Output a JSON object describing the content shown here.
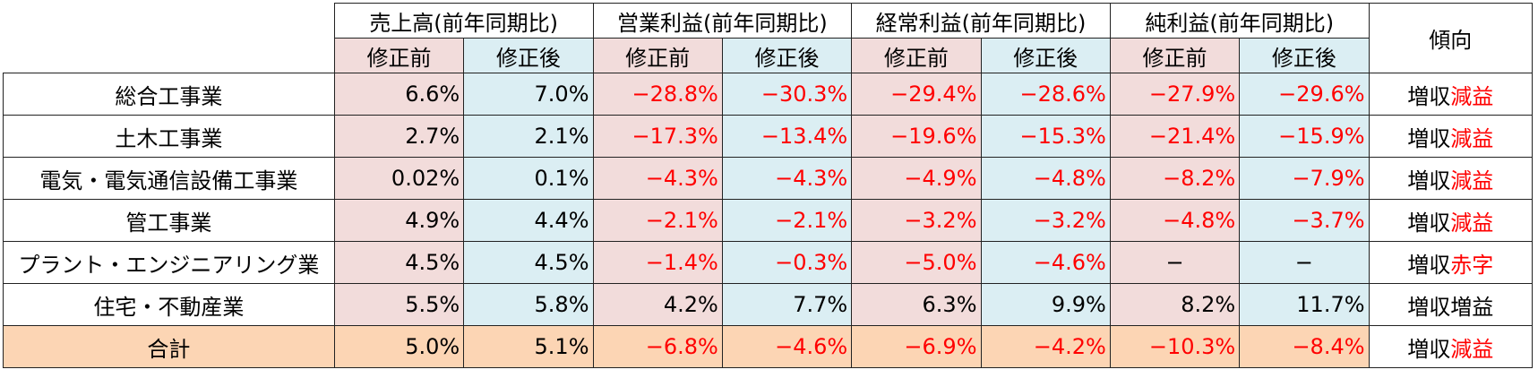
{
  "headers": {
    "groups": [
      "売上高(前年同期比)",
      "営業利益(前年同期比)",
      "経常利益(前年同期比)",
      "純利益(前年同期比)"
    ],
    "trend": "傾向",
    "before": "修正前",
    "after": "修正後"
  },
  "rows": [
    {
      "category": "総合工事業",
      "values": [
        "6.6%",
        "7.0%",
        "−28.8%",
        "−30.3%",
        "−29.4%",
        "−28.6%",
        "−27.9%",
        "−29.6%"
      ],
      "trend_prefix": "増収",
      "trend_suffix": "減益"
    },
    {
      "category": "土木工事業",
      "values": [
        "2.7%",
        "2.1%",
        "−17.3%",
        "−13.4%",
        "−19.6%",
        "−15.3%",
        "−21.4%",
        "−15.9%"
      ],
      "trend_prefix": "増収",
      "trend_suffix": "減益"
    },
    {
      "category": "電気・電気通信設備工事業",
      "values": [
        "0.02%",
        "0.1%",
        "−4.3%",
        "−4.3%",
        "−4.9%",
        "−4.8%",
        "−8.2%",
        "−7.9%"
      ],
      "trend_prefix": "増収",
      "trend_suffix": "減益"
    },
    {
      "category": "管工事業",
      "values": [
        "4.9%",
        "4.4%",
        "−2.1%",
        "−2.1%",
        "−3.2%",
        "−3.2%",
        "−4.8%",
        "−3.7%"
      ],
      "trend_prefix": "増収",
      "trend_suffix": "減益"
    },
    {
      "category": "プラント・エンジニアリング業",
      "values": [
        "4.5%",
        "4.5%",
        "−1.4%",
        "−0.3%",
        "−5.0%",
        "−4.6%",
        "−",
        "−"
      ],
      "trend_prefix": "増収",
      "trend_suffix": "赤字"
    },
    {
      "category": "住宅・不動産業",
      "values": [
        "5.5%",
        "5.8%",
        "4.2%",
        "7.7%",
        "6.3%",
        "9.9%",
        "8.2%",
        "11.7%"
      ],
      "trend_prefix": "増収",
      "trend_suffix": "増益"
    },
    {
      "category": "合計",
      "values": [
        "5.0%",
        "5.1%",
        "−6.8%",
        "−4.6%",
        "−6.9%",
        "−4.2%",
        "−10.3%",
        "−8.4%"
      ],
      "trend_prefix": "増収",
      "trend_suffix": "減益"
    }
  ],
  "colors": {
    "before_bg": "#f2dcdb",
    "after_bg": "#dbeef3",
    "total_bg": "#fcd5b4",
    "negative": "#ff0000"
  }
}
